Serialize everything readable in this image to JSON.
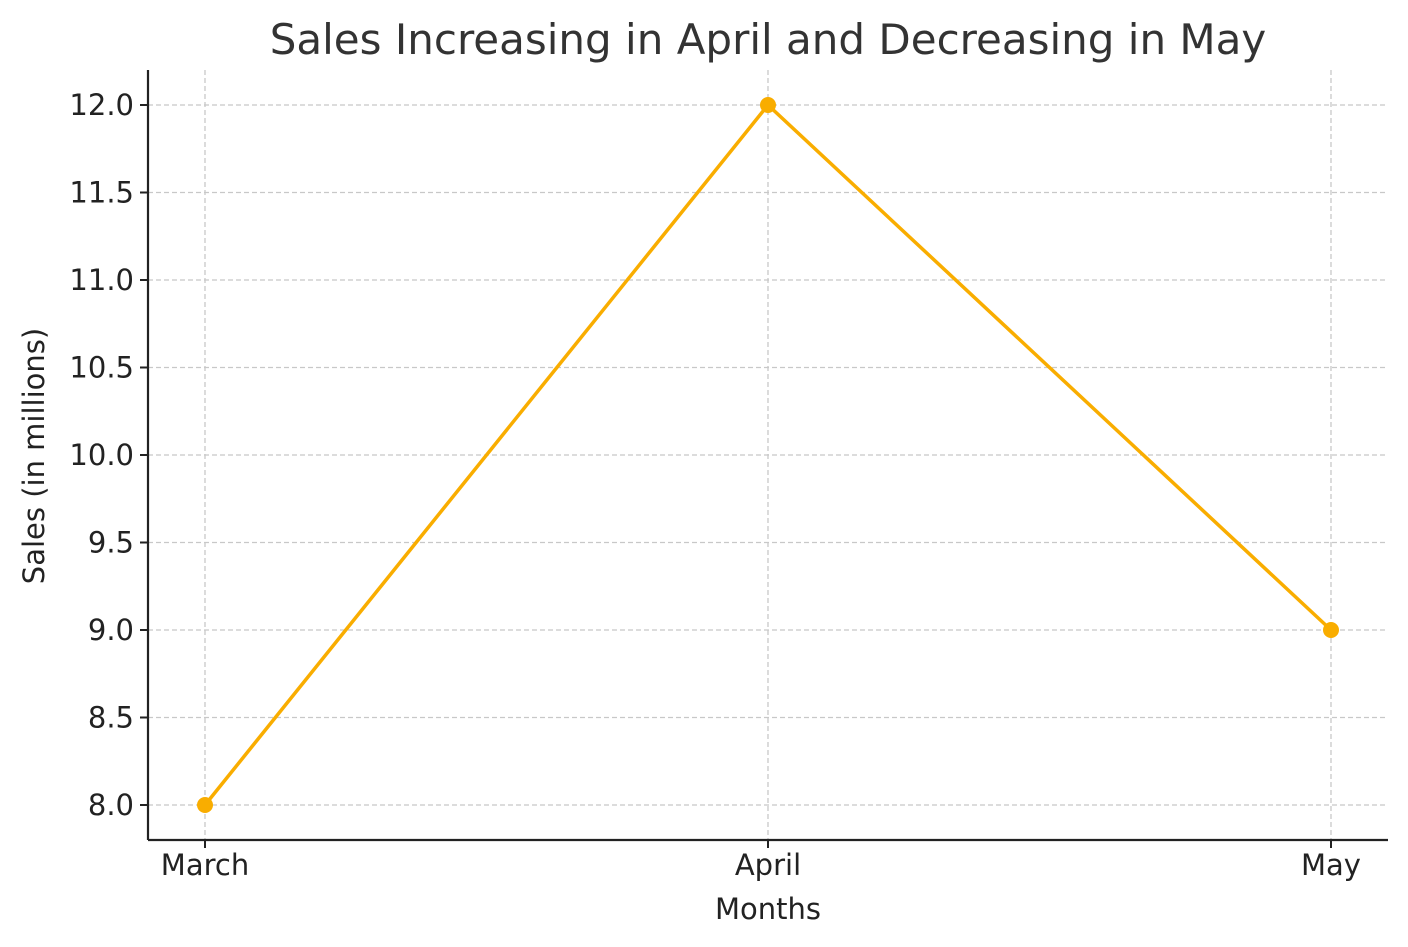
{
  "chart_data": {
    "type": "line",
    "title": "Sales Increasing in April and Decreasing in May",
    "xlabel": "Months",
    "ylabel": "Sales (in millions)",
    "categories": [
      "March",
      "April",
      "May"
    ],
    "series": [
      {
        "values": [
          8.0,
          12.0,
          9.0
        ],
        "color": "#f9ad00",
        "marker": "circle"
      }
    ],
    "ylim": [
      7.8,
      12.2
    ],
    "yticks": [
      8.0,
      8.5,
      9.0,
      9.5,
      10.0,
      10.5,
      11.0,
      11.5,
      12.0
    ],
    "ytick_labels": [
      "8.0",
      "8.5",
      "9.0",
      "9.5",
      "10.0",
      "10.5",
      "11.0",
      "11.5",
      "12.0"
    ],
    "grid": true,
    "legend": false
  }
}
